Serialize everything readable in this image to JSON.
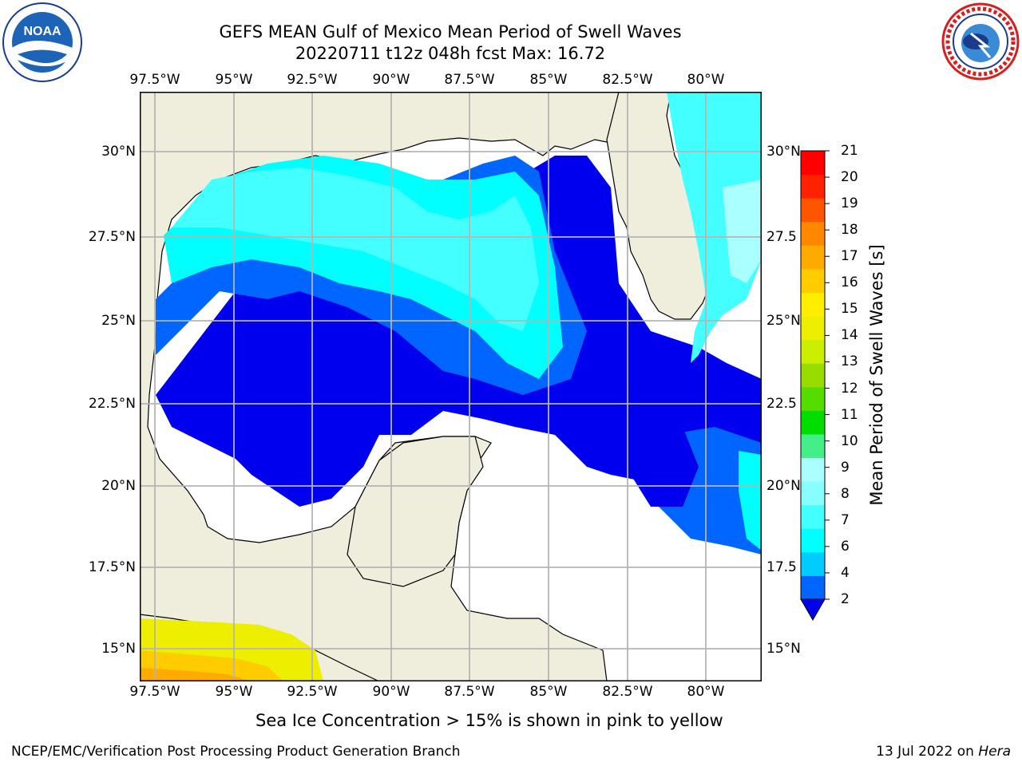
{
  "header": {
    "title_line1": "GEFS MEAN Gulf of Mexico Mean Period of Swell Waves",
    "title_line2": "20220711 t12z 048h fcst   Max: 16.72"
  },
  "logos": {
    "left": {
      "icon": "noaa-logo",
      "text": "NOAA",
      "ring_text": "NATIONAL OCEANIC AND ATMOSPHERIC ADMINISTRATION · U.S. DEPARTMENT OF COMMERCE"
    },
    "right": {
      "icon": "nws-logo",
      "ring_text": "NATIONAL WEATHER SERVICE"
    }
  },
  "map": {
    "lon_labels": [
      "97.5°W",
      "95°W",
      "92.5°W",
      "90°W",
      "87.5°W",
      "85°W",
      "82.5°W",
      "80°W"
    ],
    "lat_labels_left": [
      "30°N",
      "27.5°N",
      "25°N",
      "22.5°N",
      "20°N",
      "17.5°N",
      "15°N"
    ],
    "lat_labels_right": [
      "30°N",
      "27.5",
      "25°N",
      "22.5",
      "20°N",
      "17.5",
      "15°N"
    ],
    "land_color": "#efeedd",
    "grid_color": "#b4b4b4"
  },
  "colorbar": {
    "label": "Mean Period of Swell Waves [s]",
    "ticks": [
      "2",
      "4",
      "6",
      "7",
      "8",
      "9",
      "10",
      "11",
      "12",
      "13",
      "14",
      "15",
      "16",
      "17",
      "18",
      "19",
      "20",
      "21"
    ],
    "colors": [
      "#0066ff",
      "#00ccff",
      "#00ffff",
      "#44ffff",
      "#88ffff",
      "#aaffff",
      "#44ee88",
      "#00dd00",
      "#55dd00",
      "#99dd00",
      "#ccee00",
      "#eeee00",
      "#ffee00",
      "#ffcc00",
      "#ffaa00",
      "#ff8800",
      "#ff5500",
      "#ff2200",
      "#ff0000"
    ],
    "under_color": "#0000ee"
  },
  "note": "Sea Ice Concentration > 15% is shown in pink to yellow",
  "footer": {
    "left": "NCEP/EMC/Verification Post Processing Product Generation Branch",
    "right_date": "13 Jul 2022 on ",
    "right_host": "Hera"
  }
}
